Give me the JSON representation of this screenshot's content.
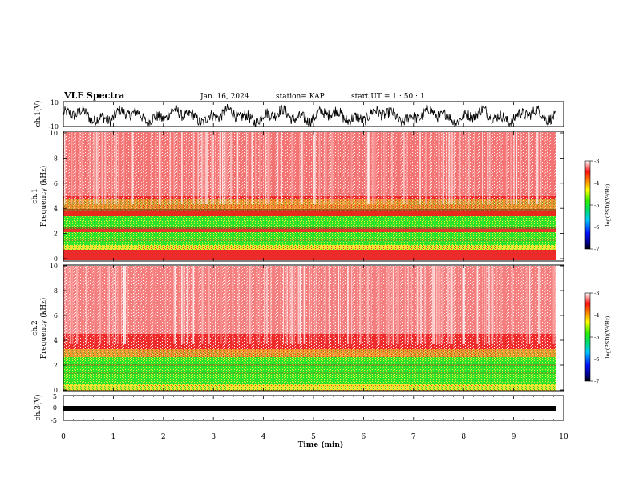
{
  "header": {
    "title": "VLF Spectra",
    "date": "Jan. 16, 2024",
    "station": "station= KAP",
    "start": "start  UT =   1 : 50 : 1"
  },
  "chart_data": [
    {
      "type": "line",
      "ylabel": "ch.1(V)",
      "ylim": [
        -10,
        10
      ],
      "yticks": [
        "10",
        "-10"
      ],
      "xlim": [
        0,
        10
      ],
      "description_color": "#000000"
    },
    {
      "type": "heatmap",
      "ylabel_line1": "ch.1",
      "ylabel_line2": "Frequency  (kHz)",
      "ylim": [
        0,
        10
      ],
      "yticks": [
        "0",
        "2",
        "4",
        "6",
        "8",
        "10"
      ],
      "xlim": [
        0,
        10
      ],
      "xmax_data": 9.83,
      "colorbar": {
        "label": "log(PSD)(V²/Hz)",
        "ticks": [
          "-3",
          "-4",
          "-5",
          "-6",
          "-7"
        ],
        "range": [
          -7,
          -3
        ]
      }
    },
    {
      "type": "heatmap",
      "ylabel_line1": "ch.2",
      "ylabel_line2": "Frequency  (kHz)",
      "ylim": [
        0,
        10
      ],
      "yticks": [
        "0",
        "2",
        "4",
        "6",
        "8",
        "10"
      ],
      "xlim": [
        0,
        10
      ],
      "xmax_data": 9.83,
      "colorbar": {
        "label": "log(PSD)(V²/Hz)",
        "ticks": [
          "-3",
          "-4",
          "-5",
          "-6",
          "-7"
        ],
        "range": [
          -7,
          -3
        ]
      }
    },
    {
      "type": "line",
      "ylabel": "ch.3(V)",
      "ylim": [
        -5,
        5
      ],
      "yticks": [
        "5",
        "0",
        "-5"
      ],
      "xlim": [
        0,
        10
      ]
    }
  ],
  "xaxis": {
    "label": "Time  (min)",
    "ticks": [
      "0",
      "1",
      "2",
      "3",
      "4",
      "5",
      "6",
      "7",
      "8",
      "9",
      "10"
    ]
  },
  "colors": {
    "spectrum_high": "#e81414",
    "spectrum_mid": "#f0e030",
    "spectrum_low": "#10e010",
    "background": "#ffffff"
  }
}
